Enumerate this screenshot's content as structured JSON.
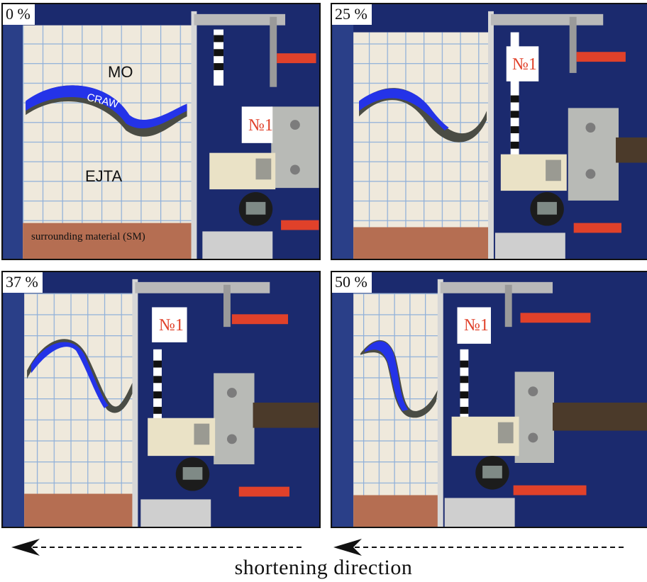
{
  "panels": [
    {
      "percent": "0 %"
    },
    {
      "percent": "25 %"
    },
    {
      "percent": "37 %"
    },
    {
      "percent": "50 %"
    }
  ],
  "labels": {
    "mo": "MO",
    "craw": "CRAW",
    "ejta": "EJTA",
    "sm": "surrounding material (SM)"
  },
  "sign": "№1",
  "caption": "shortening direction",
  "colors": {
    "frame": "#1b2a6e",
    "sand": "#efe9dc",
    "grid": "#8fb0d9",
    "craw_blue": "#2433e8",
    "craw_dark": "#4a4c44",
    "sm": "#b56e52",
    "clamp_red": "#e0412a"
  }
}
